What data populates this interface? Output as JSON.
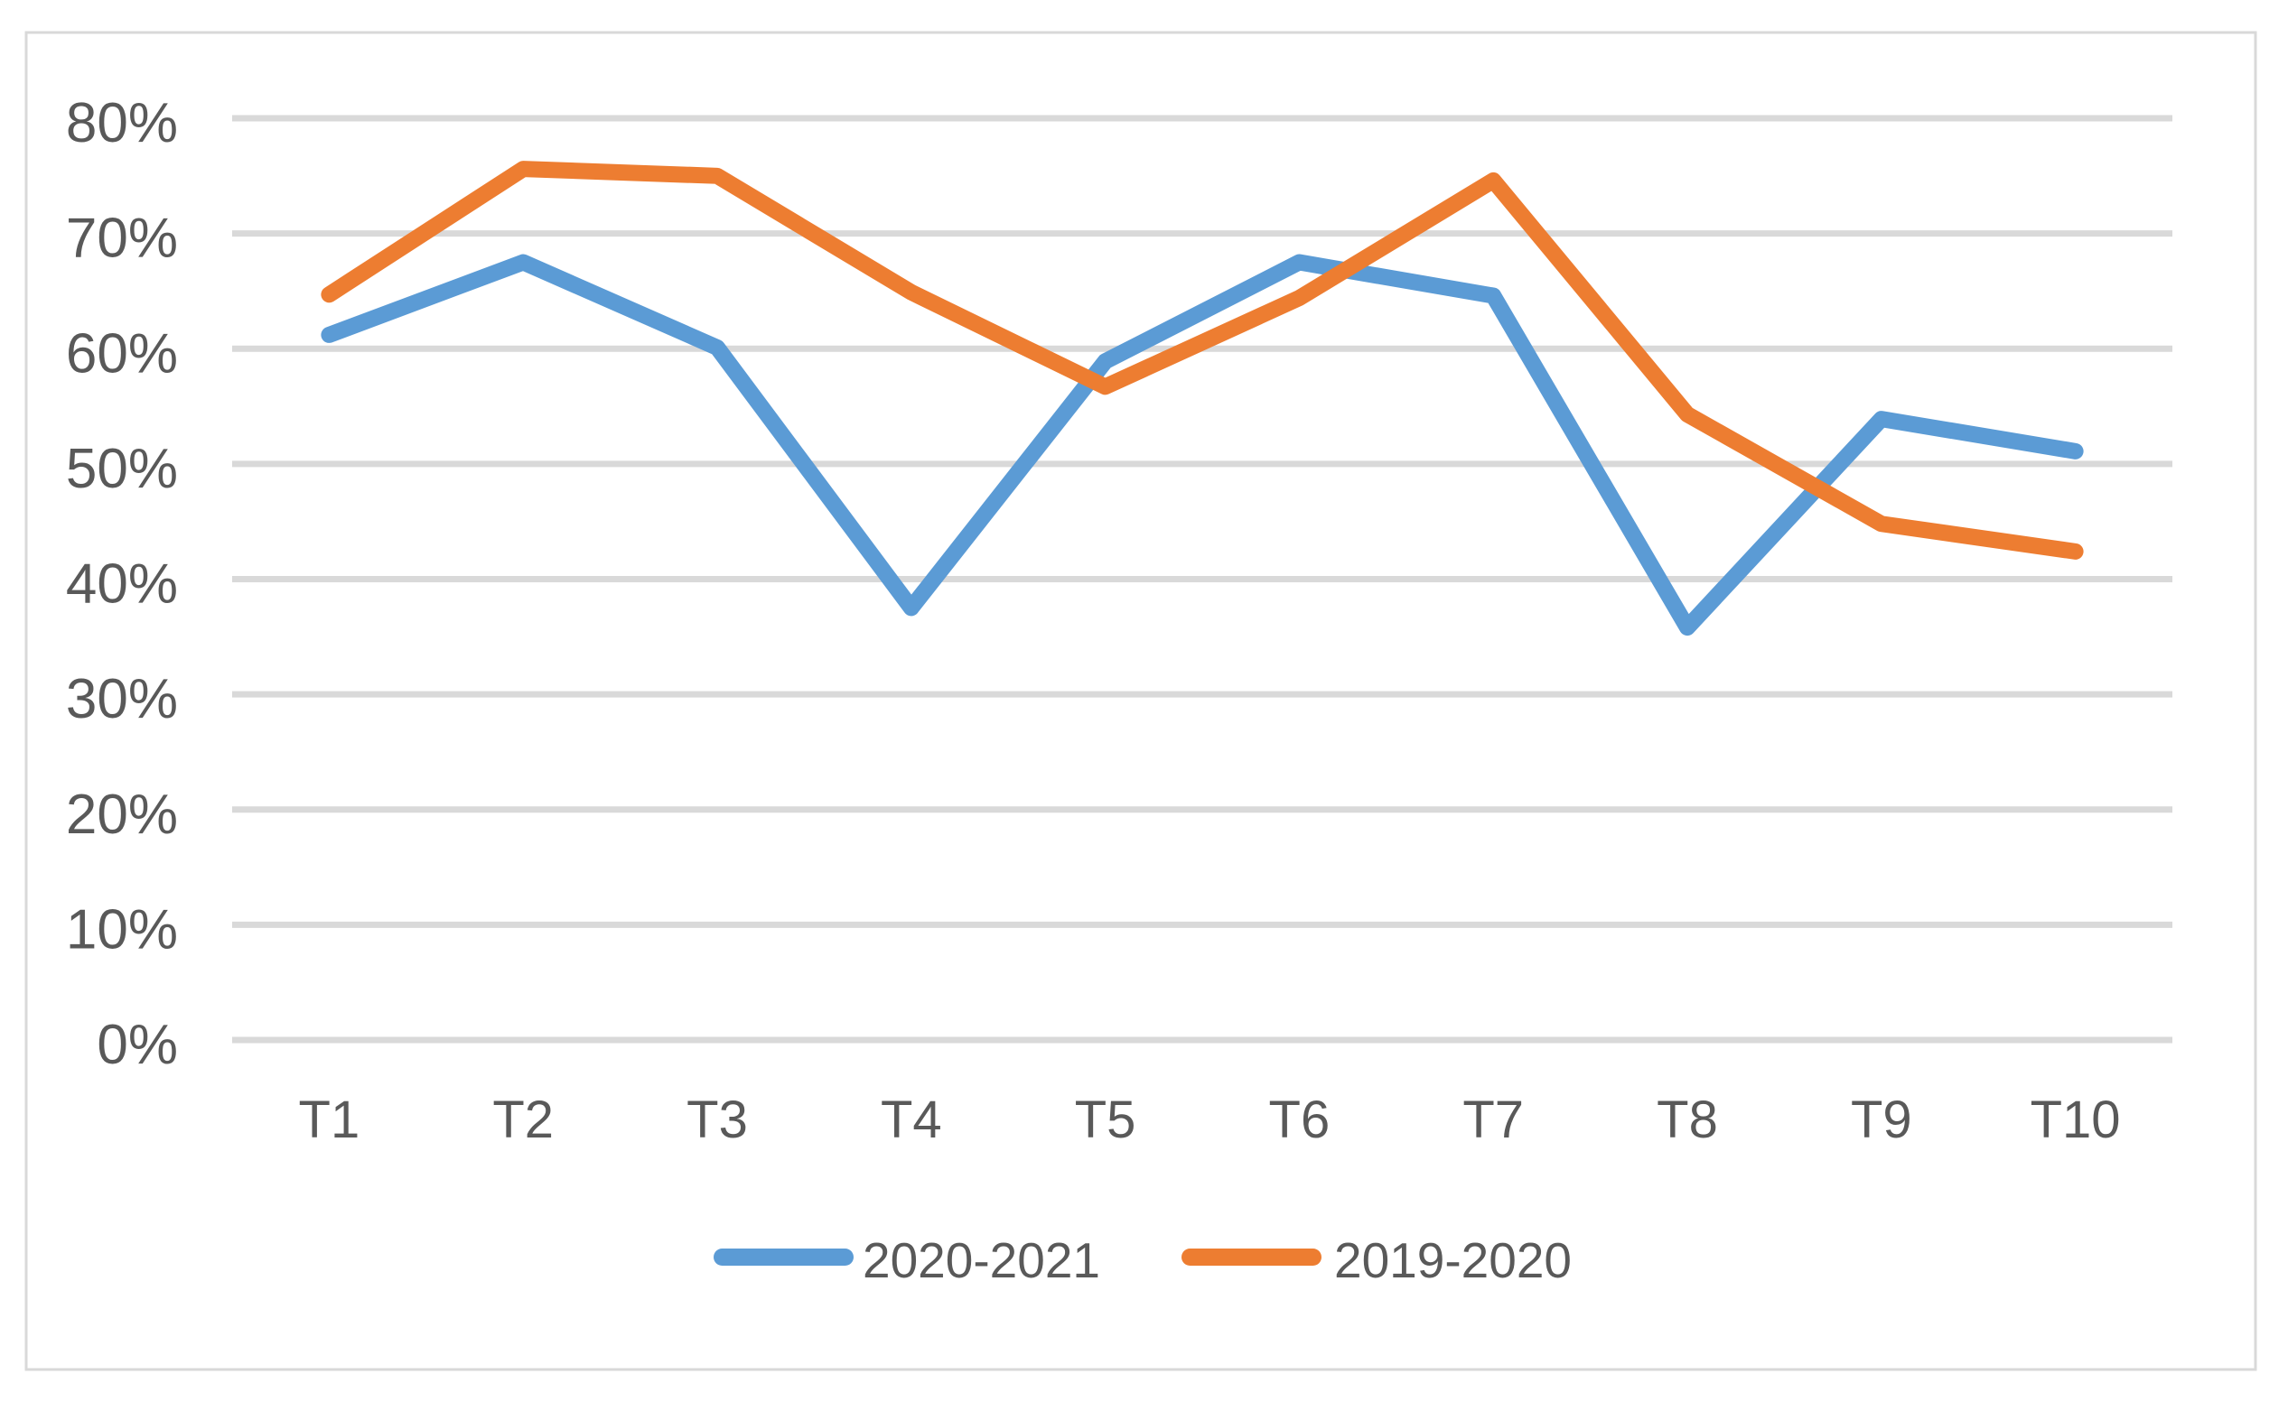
{
  "chart_data": {
    "type": "line",
    "title": "",
    "xlabel": "",
    "ylabel": "",
    "categories": [
      "T1",
      "T2",
      "T3",
      "T4",
      "T5",
      "T6",
      "T7",
      "T8",
      "T9",
      "T10"
    ],
    "series": [
      {
        "name": "2020-2021",
        "color": "#5B9BD5",
        "values": [
          61.2,
          67.5,
          60.1,
          37.5,
          58.9,
          67.5,
          64.6,
          35.8,
          53.9,
          51.1
        ]
      },
      {
        "name": "2019-2020",
        "color": "#ED7D31",
        "values": [
          64.7,
          75.6,
          75.0,
          64.9,
          56.7,
          64.4,
          74.6,
          54.3,
          44.8,
          42.4
        ]
      }
    ],
    "ylim": [
      0,
      80
    ],
    "ytick_values": [
      0,
      10,
      20,
      30,
      40,
      50,
      60,
      70,
      80
    ],
    "ytick_labels": [
      "0%",
      "10%",
      "20%",
      "30%",
      "40%",
      "50%",
      "60%",
      "70%",
      "80%"
    ],
    "grid": true,
    "legend_position": "bottom-center",
    "colors": {
      "gridline": "#D9D9D9",
      "frame_border": "#D9D9D9",
      "axis_text": "#595959",
      "background": "#FFFFFF"
    }
  }
}
